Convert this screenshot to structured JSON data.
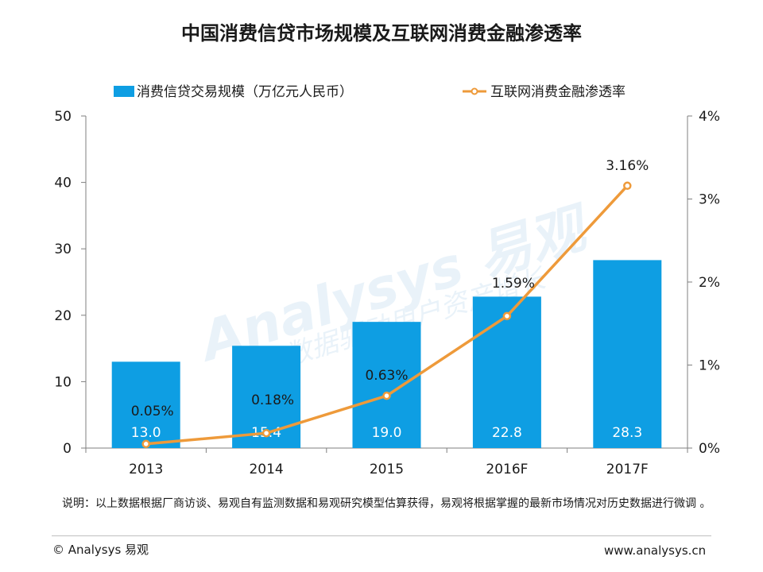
{
  "chart_data": {
    "type": "bar+line",
    "title": "中国消费信贷市场规模及互联网消费金融渗透率",
    "categories": [
      "2013",
      "2014",
      "2015",
      "2016F",
      "2017F"
    ],
    "series": [
      {
        "name": "消费信贷交易规模（万亿元人民币）",
        "type": "bar",
        "axis": "left",
        "values": [
          13.0,
          15.4,
          19.0,
          22.8,
          28.3
        ],
        "labels": [
          "13.0",
          "15.4",
          "19.0",
          "22.8",
          "28.3"
        ]
      },
      {
        "name": "互联网消费金融渗透率",
        "type": "line",
        "axis": "right",
        "values": [
          0.05,
          0.18,
          0.63,
          1.59,
          3.16
        ],
        "labels": [
          "0.05%",
          "0.18%",
          "0.63%",
          "1.59%",
          "3.16%"
        ]
      }
    ],
    "y_left": {
      "ylim": [
        0,
        50
      ],
      "ticks": [
        "0",
        "10",
        "20",
        "30",
        "40",
        "50"
      ]
    },
    "y_right": {
      "ylim": [
        0,
        4
      ],
      "ticks": [
        "0%",
        "1%",
        "2%",
        "3%",
        "4%"
      ]
    },
    "legend_position": "top",
    "grid": false,
    "colors": {
      "bar": "#0e9ee3",
      "line": "#ee9a3a",
      "bar_label": "#ffffff",
      "text": "#1a1a1a"
    }
  },
  "watermark": {
    "brand": "Analysys 易观",
    "slogan": "数据驱动用户资产增长"
  },
  "footer": {
    "note": "说明：以上数据根据厂商访谈、易观自有监测数据和易观研究模型估算获得，易观将根据掌握的最新市场情况对历史数据进行微调 。",
    "copyright": "© Analysys 易观",
    "website": "www.analysys.cn"
  }
}
